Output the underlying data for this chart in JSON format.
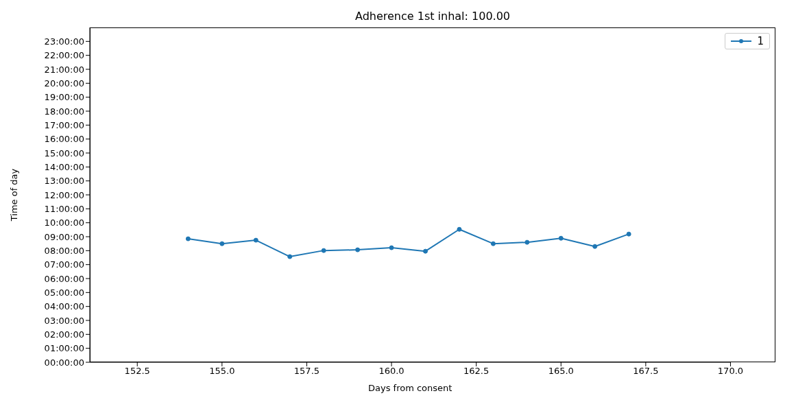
{
  "chart_data": {
    "type": "line",
    "title": "Adherence 1st inhal: 100.00",
    "xlabel": "Days from consent",
    "ylabel": "Time of day",
    "x": [
      154,
      155,
      156,
      157,
      158,
      159,
      160,
      161,
      162,
      163,
      164,
      165,
      166,
      167
    ],
    "series": [
      {
        "name": "1",
        "color": "#1f77b4",
        "values": [
          8.85,
          8.5,
          8.75,
          7.57,
          8.01,
          8.06,
          8.21,
          7.96,
          9.53,
          8.5,
          8.6,
          8.89,
          8.3,
          9.19
        ]
      }
    ],
    "xlim": [
      151.1,
      170
    ],
    "xticks": [
      {
        "value": 152.5,
        "label": "152.5"
      },
      {
        "value": 155,
        "label": "155.0"
      },
      {
        "value": 157.5,
        "label": "157.5"
      },
      {
        "value": 160,
        "label": "160.0"
      },
      {
        "value": 162.5,
        "label": "162.5"
      },
      {
        "value": 165,
        "label": "165.0"
      },
      {
        "value": 167.5,
        "label": "167.5"
      },
      {
        "value": 170,
        "label": "170.0"
      }
    ],
    "ylim": [
      0,
      24
    ],
    "yticks": [
      {
        "value": 0,
        "label": "00:00:00"
      },
      {
        "value": 1,
        "label": "01:00:00"
      },
      {
        "value": 2,
        "label": "02:00:00"
      },
      {
        "value": 3,
        "label": "03:00:00"
      },
      {
        "value": 4,
        "label": "04:00:00"
      },
      {
        "value": 5,
        "label": "05:00:00"
      },
      {
        "value": 6,
        "label": "06:00:00"
      },
      {
        "value": 7,
        "label": "07:00:00"
      },
      {
        "value": 8,
        "label": "08:00:00"
      },
      {
        "value": 9,
        "label": "09:00:00"
      },
      {
        "value": 10,
        "label": "10:00:00"
      },
      {
        "value": 11,
        "label": "11:00:00"
      },
      {
        "value": 12,
        "label": "12:00:00"
      },
      {
        "value": 13,
        "label": "13:00:00"
      },
      {
        "value": 14,
        "label": "14:00:00"
      },
      {
        "value": 15,
        "label": "15:00:00"
      },
      {
        "value": 16,
        "label": "16:00:00"
      },
      {
        "value": 17,
        "label": "17:00:00"
      },
      {
        "value": 18,
        "label": "18:00:00"
      },
      {
        "value": 19,
        "label": "19:00:00"
      },
      {
        "value": 20,
        "label": "20:00:00"
      },
      {
        "value": 21,
        "label": "21:00:00"
      },
      {
        "value": 22,
        "label": "22:00:00"
      },
      {
        "value": 23,
        "label": "23:00:00"
      }
    ],
    "legend": "top right",
    "marker": "circle",
    "line_style": "solid",
    "grid": false
  }
}
